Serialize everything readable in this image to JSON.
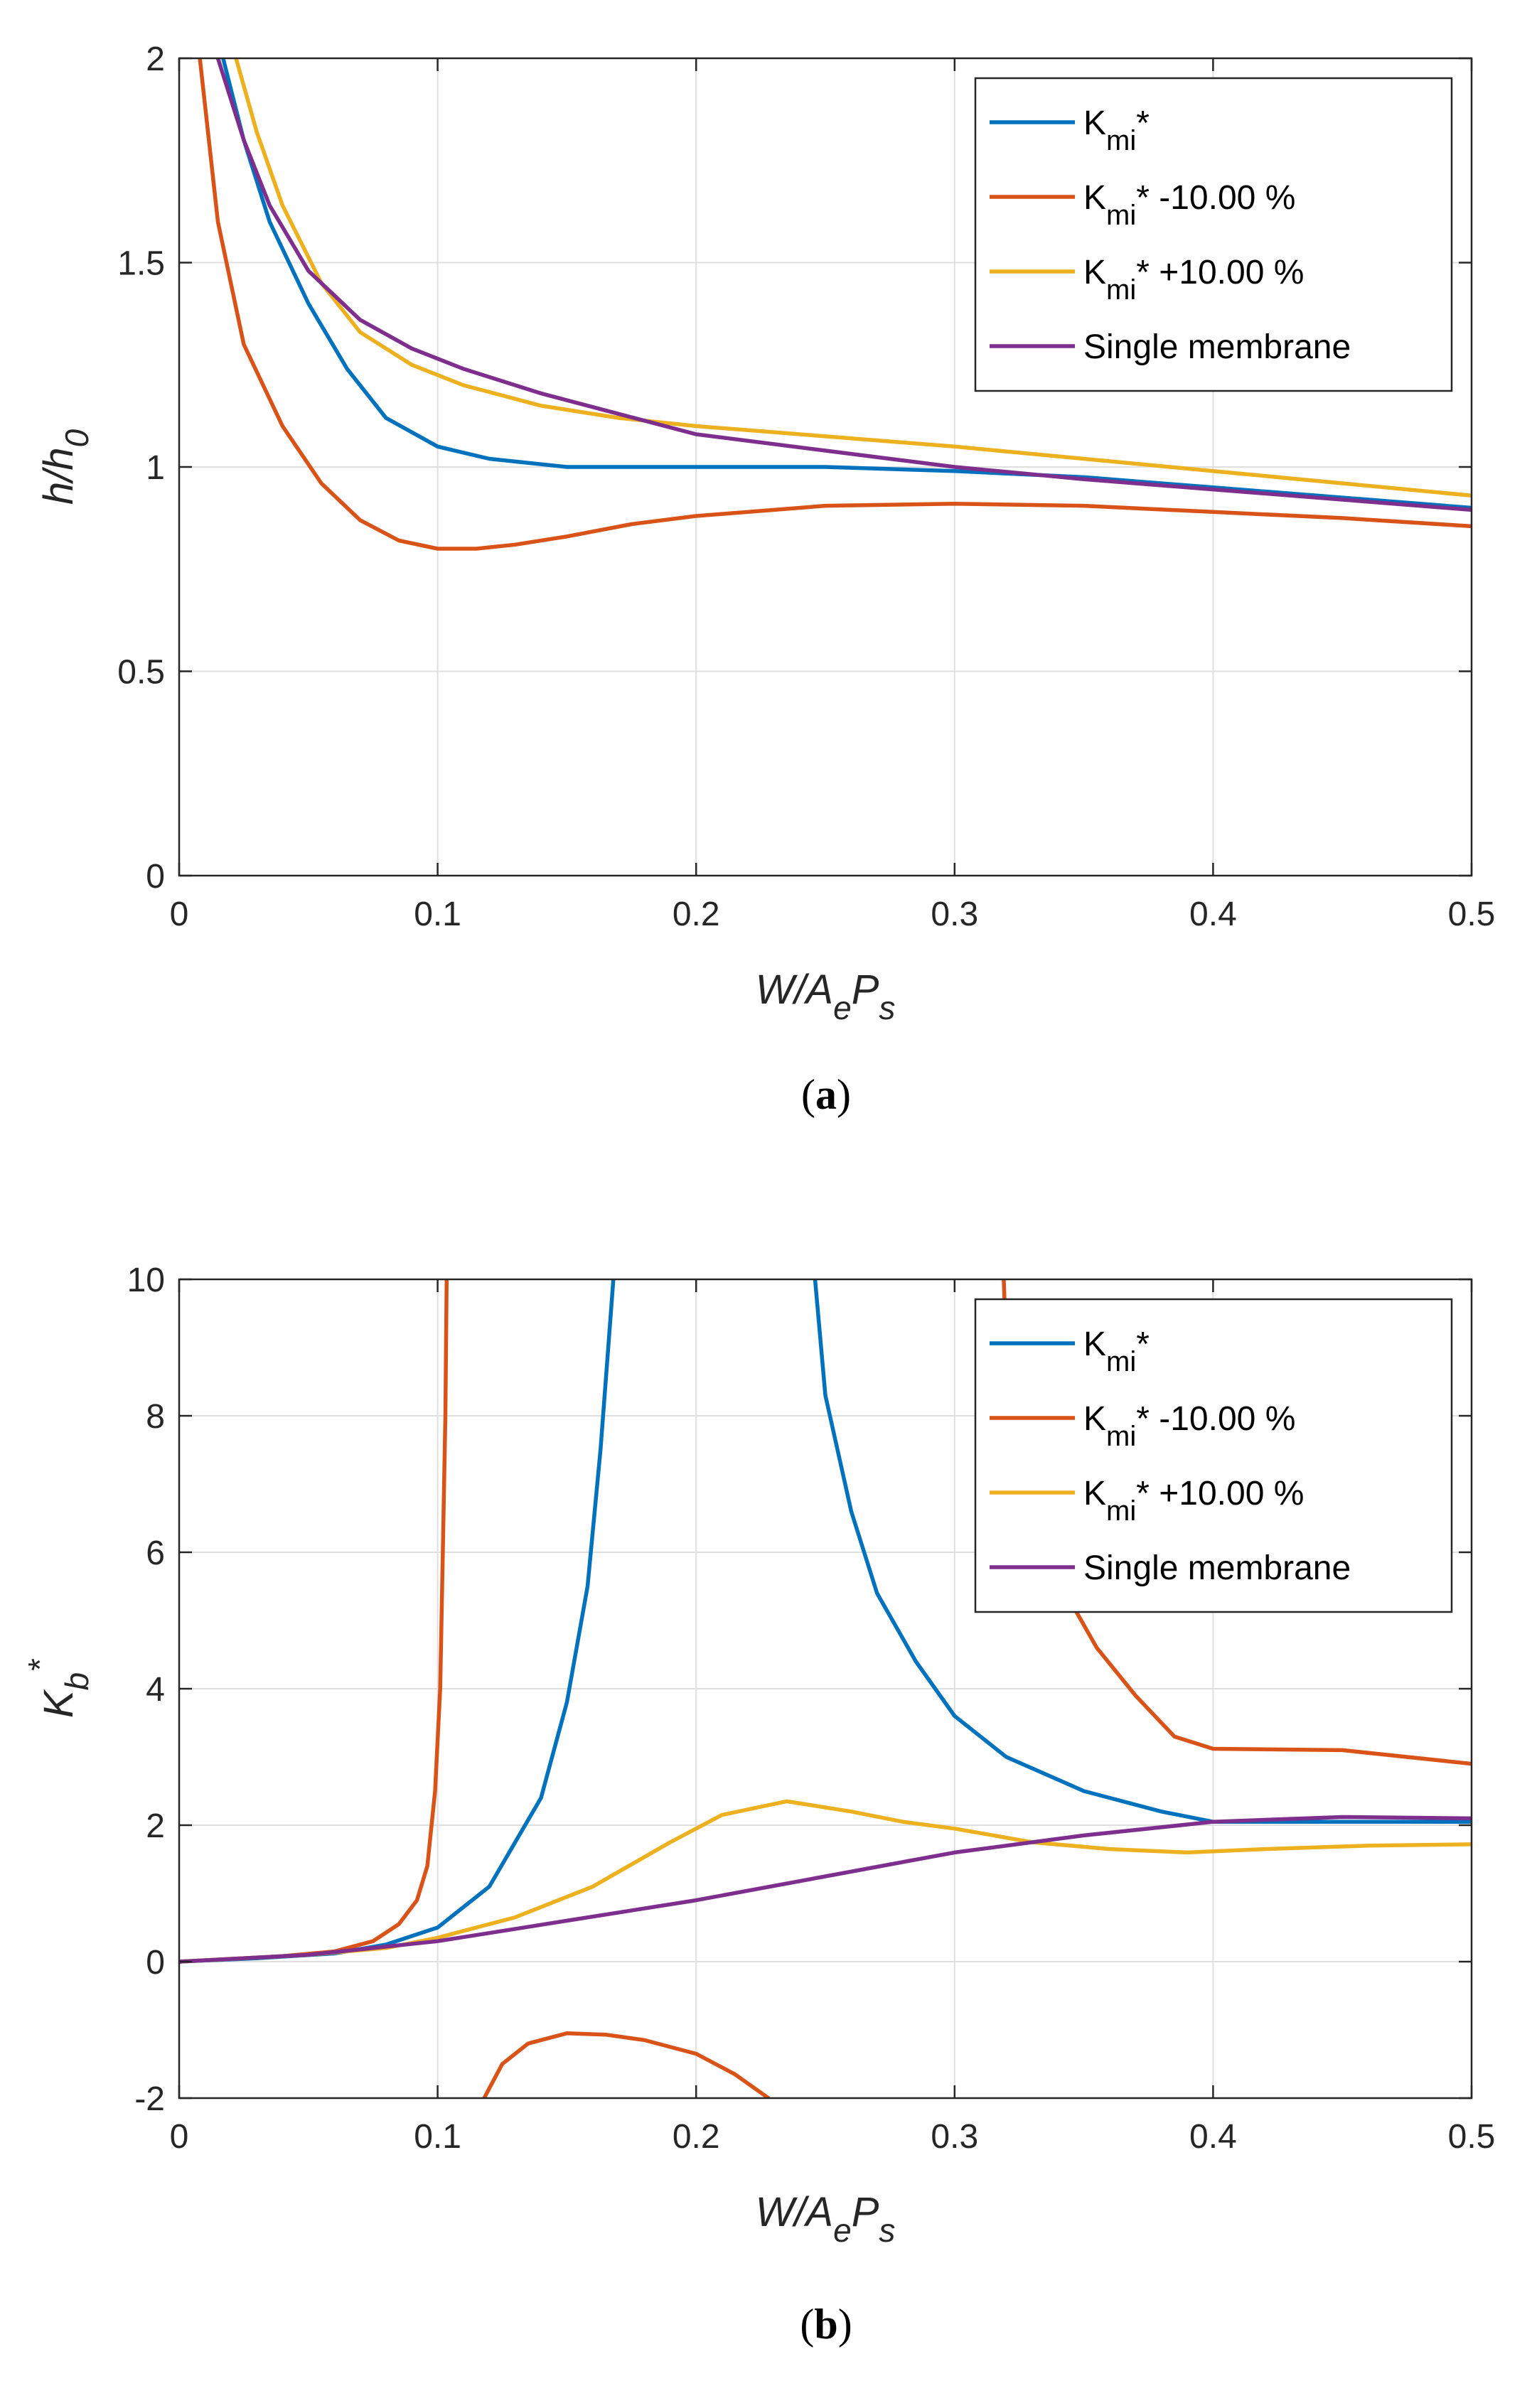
{
  "colors": {
    "blue": "#0072BD",
    "orange": "#D95319",
    "yellow": "#EDB120",
    "purple": "#7E2F8E",
    "grid": "#DFDFDF",
    "axis": "#262626"
  },
  "legend_entries": [
    {
      "base": "K",
      "sub": "mi",
      "suffix": "*"
    },
    {
      "base": "K",
      "sub": "mi",
      "suffix": "* -10.00 %"
    },
    {
      "base": "K",
      "sub": "mi",
      "suffix": "* +10.00 %"
    },
    {
      "base": "Single membrane",
      "sub": "",
      "suffix": ""
    }
  ],
  "chart_data": [
    {
      "type": "line",
      "caption": "(a)",
      "caption_letter": "a",
      "xlabel": {
        "main": "W/A",
        "sub1": "e",
        "mid": "P",
        "sub2": "s"
      },
      "ylabel": {
        "main": "h/h",
        "sub": "0"
      },
      "xlim": [
        0,
        0.5
      ],
      "ylim": [
        0,
        2
      ],
      "xticks": [
        0,
        0.1,
        0.2,
        0.3,
        0.4,
        0.5
      ],
      "xtick_labels": [
        "0",
        "0.1",
        "0.2",
        "0.3",
        "0.4",
        "0.5"
      ],
      "yticks": [
        0,
        0.5,
        1,
        1.5,
        2
      ],
      "ytick_labels": [
        "0",
        "0.5",
        "1",
        "1.5",
        "2"
      ],
      "grid": true,
      "legend_position": "top-right",
      "series": [
        {
          "name": "Kmi*",
          "color": "blue",
          "segments": [
            [
              [
                0.017,
                2.0
              ],
              [
                0.025,
                1.8
              ],
              [
                0.035,
                1.6
              ],
              [
                0.05,
                1.4
              ],
              [
                0.065,
                1.24
              ],
              [
                0.08,
                1.12
              ],
              [
                0.1,
                1.05
              ],
              [
                0.12,
                1.02
              ],
              [
                0.15,
                1.0
              ],
              [
                0.2,
                1.0
              ],
              [
                0.25,
                1.0
              ],
              [
                0.3,
                0.99
              ],
              [
                0.35,
                0.975
              ],
              [
                0.4,
                0.95
              ],
              [
                0.45,
                0.925
              ],
              [
                0.5,
                0.9
              ]
            ]
          ]
        },
        {
          "name": "Kmi* -10.00 %",
          "color": "orange",
          "segments": [
            [
              [
                0.008,
                2.0
              ],
              [
                0.015,
                1.6
              ],
              [
                0.025,
                1.3
              ],
              [
                0.04,
                1.1
              ],
              [
                0.055,
                0.96
              ],
              [
                0.07,
                0.87
              ],
              [
                0.085,
                0.82
              ],
              [
                0.1,
                0.8
              ],
              [
                0.115,
                0.8
              ],
              [
                0.13,
                0.81
              ],
              [
                0.15,
                0.83
              ],
              [
                0.175,
                0.86
              ],
              [
                0.2,
                0.88
              ],
              [
                0.25,
                0.905
              ],
              [
                0.3,
                0.91
              ],
              [
                0.35,
                0.905
              ],
              [
                0.4,
                0.89
              ],
              [
                0.45,
                0.875
              ],
              [
                0.5,
                0.855
              ]
            ]
          ]
        },
        {
          "name": "Kmi* +10.00 %",
          "color": "yellow",
          "segments": [
            [
              [
                0.022,
                2.0
              ],
              [
                0.03,
                1.82
              ],
              [
                0.04,
                1.64
              ],
              [
                0.055,
                1.45
              ],
              [
                0.07,
                1.33
              ],
              [
                0.09,
                1.25
              ],
              [
                0.11,
                1.2
              ],
              [
                0.14,
                1.15
              ],
              [
                0.17,
                1.12
              ],
              [
                0.2,
                1.1
              ],
              [
                0.25,
                1.075
              ],
              [
                0.3,
                1.05
              ],
              [
                0.35,
                1.02
              ],
              [
                0.4,
                0.99
              ],
              [
                0.45,
                0.96
              ],
              [
                0.5,
                0.93
              ]
            ]
          ]
        },
        {
          "name": "Single membrane",
          "color": "purple",
          "segments": [
            [
              [
                0.015,
                2.0
              ],
              [
                0.025,
                1.8
              ],
              [
                0.035,
                1.64
              ],
              [
                0.05,
                1.48
              ],
              [
                0.07,
                1.36
              ],
              [
                0.09,
                1.29
              ],
              [
                0.11,
                1.24
              ],
              [
                0.14,
                1.18
              ],
              [
                0.17,
                1.13
              ],
              [
                0.2,
                1.08
              ],
              [
                0.25,
                1.04
              ],
              [
                0.3,
                1.0
              ],
              [
                0.35,
                0.97
              ],
              [
                0.4,
                0.945
              ],
              [
                0.45,
                0.92
              ],
              [
                0.5,
                0.895
              ]
            ]
          ]
        }
      ]
    },
    {
      "type": "line",
      "caption": "(b)",
      "caption_letter": "b",
      "xlabel": {
        "main": "W/A",
        "sub1": "e",
        "mid": "P",
        "sub2": "s"
      },
      "ylabel": {
        "main": "K",
        "sub": "b",
        "sup": "*"
      },
      "xlim": [
        0,
        0.5
      ],
      "ylim": [
        -2,
        10
      ],
      "xticks": [
        0,
        0.1,
        0.2,
        0.3,
        0.4,
        0.5
      ],
      "xtick_labels": [
        "0",
        "0.1",
        "0.2",
        "0.3",
        "0.4",
        "0.5"
      ],
      "yticks": [
        -2,
        0,
        2,
        4,
        6,
        8,
        10
      ],
      "ytick_labels": [
        "-2",
        "0",
        "2",
        "4",
        "6",
        "8",
        "10"
      ],
      "grid": true,
      "legend_position": "top-right",
      "series": [
        {
          "name": "Kmi*",
          "color": "blue",
          "segments": [
            [
              [
                0,
                0
              ],
              [
                0.03,
                0.05
              ],
              [
                0.06,
                0.12
              ],
              [
                0.08,
                0.25
              ],
              [
                0.1,
                0.5
              ],
              [
                0.12,
                1.1
              ],
              [
                0.14,
                2.4
              ],
              [
                0.15,
                3.8
              ],
              [
                0.158,
                5.5
              ],
              [
                0.163,
                7.5
              ],
              [
                0.166,
                9.0
              ],
              [
                0.168,
                10
              ]
            ],
            [
              [
                0.246,
                10
              ],
              [
                0.25,
                8.3
              ],
              [
                0.26,
                6.6
              ],
              [
                0.27,
                5.4
              ],
              [
                0.285,
                4.4
              ],
              [
                0.3,
                3.6
              ],
              [
                0.32,
                3.0
              ],
              [
                0.35,
                2.5
              ],
              [
                0.38,
                2.2
              ],
              [
                0.4,
                2.05
              ],
              [
                0.45,
                2.05
              ],
              [
                0.5,
                2.05
              ]
            ]
          ]
        },
        {
          "name": "Kmi* -10.00 %",
          "color": "orange",
          "segments": [
            [
              [
                0,
                0
              ],
              [
                0.04,
                0.08
              ],
              [
                0.06,
                0.15
              ],
              [
                0.075,
                0.3
              ],
              [
                0.085,
                0.55
              ],
              [
                0.092,
                0.9
              ],
              [
                0.096,
                1.4
              ],
              [
                0.099,
                2.5
              ],
              [
                0.101,
                4.0
              ],
              [
                0.102,
                6.0
              ],
              [
                0.103,
                8.0
              ],
              [
                0.1035,
                10
              ]
            ],
            [
              [
                0.118,
                -2
              ],
              [
                0.125,
                -1.5
              ],
              [
                0.135,
                -1.2
              ],
              [
                0.15,
                -1.05
              ],
              [
                0.165,
                -1.07
              ],
              [
                0.18,
                -1.15
              ],
              [
                0.2,
                -1.35
              ],
              [
                0.215,
                -1.65
              ],
              [
                0.228,
                -2
              ]
            ],
            [
              [
                0.319,
                10
              ],
              [
                0.32,
                9.0
              ],
              [
                0.325,
                7.6
              ],
              [
                0.332,
                6.4
              ],
              [
                0.34,
                5.6
              ],
              [
                0.355,
                4.6
              ],
              [
                0.37,
                3.9
              ],
              [
                0.385,
                3.3
              ],
              [
                0.4,
                3.12
              ],
              [
                0.45,
                3.1
              ],
              [
                0.5,
                2.9
              ]
            ]
          ]
        },
        {
          "name": "Kmi* +10.00 %",
          "color": "yellow",
          "segments": [
            [
              [
                0,
                0
              ],
              [
                0.05,
                0.1
              ],
              [
                0.08,
                0.2
              ],
              [
                0.1,
                0.35
              ],
              [
                0.13,
                0.65
              ],
              [
                0.16,
                1.1
              ],
              [
                0.19,
                1.75
              ],
              [
                0.21,
                2.15
              ],
              [
                0.235,
                2.35
              ],
              [
                0.26,
                2.2
              ],
              [
                0.28,
                2.05
              ],
              [
                0.3,
                1.95
              ],
              [
                0.33,
                1.75
              ],
              [
                0.36,
                1.65
              ],
              [
                0.39,
                1.6
              ],
              [
                0.42,
                1.65
              ],
              [
                0.46,
                1.7
              ],
              [
                0.5,
                1.72
              ]
            ]
          ]
        },
        {
          "name": "Single membrane",
          "color": "purple",
          "segments": [
            [
              [
                0,
                0
              ],
              [
                0.05,
                0.1
              ],
              [
                0.1,
                0.3
              ],
              [
                0.15,
                0.6
              ],
              [
                0.2,
                0.9
              ],
              [
                0.25,
                1.25
              ],
              [
                0.3,
                1.6
              ],
              [
                0.35,
                1.85
              ],
              [
                0.4,
                2.05
              ],
              [
                0.45,
                2.12
              ],
              [
                0.5,
                2.1
              ]
            ]
          ]
        }
      ]
    }
  ]
}
